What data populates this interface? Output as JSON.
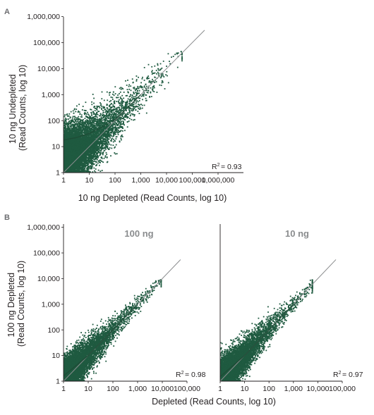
{
  "colors": {
    "points": "#1f5a40",
    "axis": "#231f20",
    "diagonal": "#8a8c8e",
    "panel_title": "#8a8c8e"
  },
  "chart_data": [
    {
      "type": "scatter",
      "panel_label": "A",
      "title": "",
      "xlabel": "10 ng Depleted (Read Counts, log 10)",
      "ylabel_lines": [
        "10 ng Undepleted",
        "(Read Counts, log 10)"
      ],
      "x_scale": "log10",
      "y_scale": "log10",
      "xlim": [
        1,
        1000000
      ],
      "ylim": [
        1,
        1000000
      ],
      "x_ticks": [
        "1",
        "10",
        "100",
        "1,000",
        "10,000",
        "100,000",
        "1,000,000"
      ],
      "y_ticks": [
        "1",
        "10",
        "100",
        "1,000",
        "10,000",
        "100,000",
        "1,000,000"
      ],
      "annotation": {
        "r_label": "R",
        "r_exp": "2",
        "r_value": "= 0.93",
        "r_squared": 0.93
      },
      "reference_line": "y = x",
      "series": [
        {
          "kind": "points",
          "approx_count": 9000,
          "x_range": [
            1,
            40000
          ],
          "y_range": [
            1,
            40000
          ]
        },
        {
          "kind": "trend",
          "x": [
            1,
            3,
            10,
            30,
            100,
            300,
            1000
          ],
          "y": [
            18,
            22,
            32,
            55,
            110,
            300,
            1000
          ]
        }
      ]
    },
    {
      "type": "scatter",
      "panel_label": "B",
      "title": "100 ng",
      "xlabel": "",
      "ylabel_lines": [
        "100 ng Depleted",
        "(Read Counts, log 10)"
      ],
      "x_scale": "log10",
      "y_scale": "log10",
      "xlim": [
        1,
        100000
      ],
      "ylim": [
        1,
        1000000
      ],
      "x_ticks": [
        "1",
        "10",
        "100",
        "1,000",
        "10,000",
        "100,000"
      ],
      "y_ticks": [
        "1",
        "10",
        "100",
        "1,000",
        "10,000",
        "100,000",
        "1,000,000"
      ],
      "annotation": {
        "r_label": "R",
        "r_exp": "2",
        "r_value": "= 0.98",
        "r_squared": 0.98
      },
      "reference_line": "y = x",
      "series": [
        {
          "kind": "points",
          "approx_count": 7000,
          "x_range": [
            1,
            9000
          ],
          "y_range": [
            1,
            9000
          ]
        },
        {
          "kind": "trend",
          "x": [
            1,
            10,
            100,
            1000
          ],
          "y": [
            1.6,
            10,
            100,
            1000
          ]
        }
      ]
    },
    {
      "type": "scatter",
      "panel_label": "",
      "title": "10 ng",
      "xlabel": "Depleted (Read Counts, log 10)",
      "ylabel_lines": [],
      "x_scale": "log10",
      "y_scale": "log10",
      "xlim": [
        1,
        100000
      ],
      "ylim": [
        1,
        1000000
      ],
      "x_ticks": [
        "1",
        "10",
        "100",
        "1,000",
        "10,000",
        "100,000"
      ],
      "y_ticks": [],
      "annotation": {
        "r_label": "R",
        "r_exp": "2",
        "r_value": "= 0.97",
        "r_squared": 0.97
      },
      "reference_line": "y = x",
      "series": [
        {
          "kind": "points",
          "approx_count": 7000,
          "x_range": [
            1,
            6000
          ],
          "y_range": [
            1,
            9000
          ]
        },
        {
          "kind": "trend",
          "x": [
            1,
            10,
            100,
            1000
          ],
          "y": [
            1.5,
            10,
            100,
            1000
          ]
        }
      ]
    }
  ]
}
